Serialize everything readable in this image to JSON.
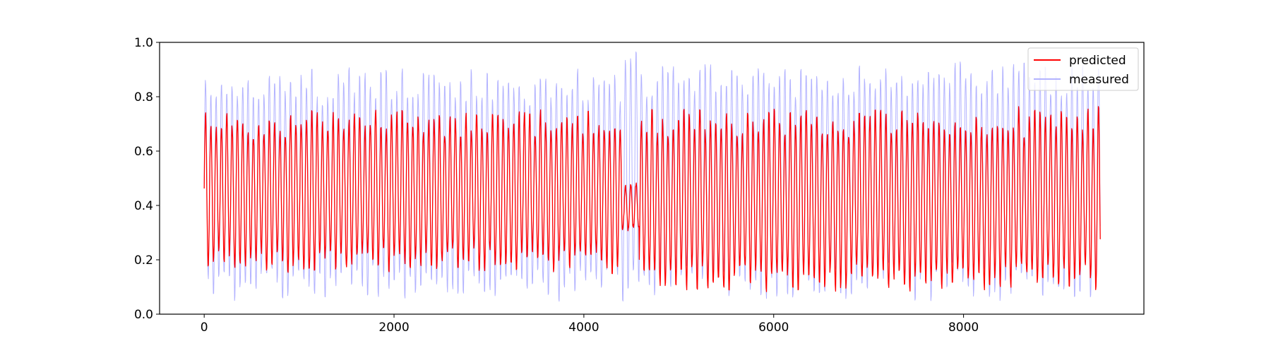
{
  "chart_data": {
    "type": "line",
    "title": "",
    "xlabel": "",
    "ylabel": "",
    "xlim": [
      -470,
      9900
    ],
    "ylim": [
      0.0,
      1.0
    ],
    "x_ticks": [
      0,
      2000,
      4000,
      6000,
      8000
    ],
    "x_tick_labels": [
      "0",
      "2000",
      "4000",
      "6000",
      "8000"
    ],
    "y_ticks": [
      0.0,
      0.2,
      0.4,
      0.6,
      0.8,
      1.0
    ],
    "y_tick_labels": [
      "0.0",
      "0.2",
      "0.4",
      "0.6",
      "0.8",
      "1.0"
    ],
    "grid": false,
    "legend_position": "top-right",
    "x_range": [
      0,
      9440
    ],
    "series": [
      {
        "name": "measured",
        "color": "#b3b3ff",
        "oscillation_period": 56,
        "segments": [
          {
            "x0": 0,
            "x1": 4400,
            "low": 0.04,
            "high": 0.91
          },
          {
            "x0": 4400,
            "x1": 4580,
            "low": 0.02,
            "high": 0.99
          },
          {
            "x0": 4580,
            "x1": 9440,
            "low": 0.05,
            "high": 0.93
          }
        ]
      },
      {
        "name": "predicted",
        "color": "#ff0000",
        "oscillation_period": 56,
        "segments": [
          {
            "x0": 0,
            "x1": 4400,
            "low": 0.15,
            "high": 0.75
          },
          {
            "x0": 4400,
            "x1": 4580,
            "low": 0.3,
            "high": 0.48
          },
          {
            "x0": 4580,
            "x1": 9440,
            "low": 0.08,
            "high": 0.76
          }
        ]
      }
    ]
  }
}
